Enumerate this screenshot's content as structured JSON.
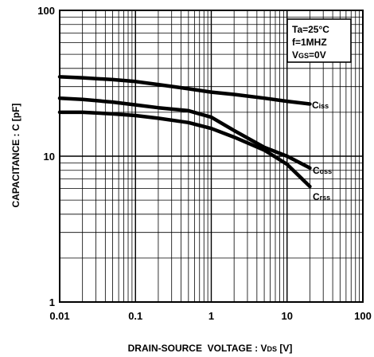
{
  "chart_data": {
    "type": "line",
    "x_scale": "log",
    "y_scale": "log",
    "xlim": [
      0.01,
      100
    ],
    "ylim": [
      1,
      100
    ],
    "xlabel": "DRAIN-SOURCE  VOLTAGE : ",
    "xlabel_sym": "V",
    "xlabel_sub": "DS",
    "xlabel_unit": " [V]",
    "ylabel": "CAPACITANCE : C [pF]",
    "x_ticks": [
      "0.01",
      "0.1",
      "1",
      "10",
      "100"
    ],
    "y_ticks": [
      "1",
      "10",
      "100"
    ],
    "grid": true,
    "conditions": {
      "line1": "Ta=25°C",
      "line2": "f=1MHZ",
      "line3_sym": "V",
      "line3_sub": "GS",
      "line3_rest": "=0V"
    },
    "series": [
      {
        "name": "Ciss",
        "sym": "C",
        "sub": "iss",
        "x": [
          0.01,
          0.02,
          0.05,
          0.1,
          0.2,
          0.5,
          1,
          2,
          5,
          10,
          20
        ],
        "y": [
          35,
          34.5,
          33.5,
          32.5,
          31,
          29,
          27.5,
          26.5,
          25,
          23.8,
          22.8
        ]
      },
      {
        "name": "Coss",
        "sym": "C",
        "sub": "oss",
        "x": [
          0.01,
          0.02,
          0.05,
          0.1,
          0.2,
          0.5,
          1,
          2,
          5,
          10,
          20
        ],
        "y": [
          25,
          24.5,
          23.5,
          22.5,
          21.5,
          20.5,
          18.5,
          15,
          11.5,
          10,
          8.3
        ]
      },
      {
        "name": "Crss",
        "sym": "C",
        "sub": "rss",
        "x": [
          0.01,
          0.02,
          0.05,
          0.1,
          0.2,
          0.5,
          1,
          2,
          5,
          10,
          20
        ],
        "y": [
          20,
          20,
          19.5,
          19,
          18.2,
          17,
          15.5,
          13.5,
          11,
          8.8,
          6.2
        ]
      }
    ]
  }
}
